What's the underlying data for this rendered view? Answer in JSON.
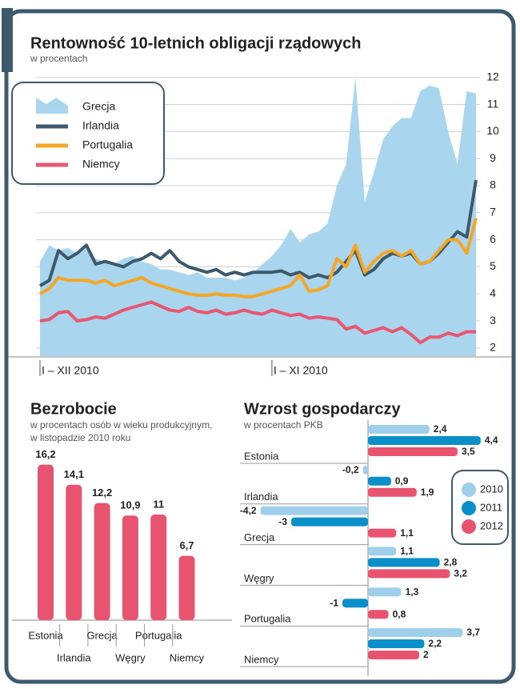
{
  "chart_data": [
    {
      "type": "line",
      "title": "Rentowność 10-letnich obligacji rządowych",
      "subtitle": "w procentach",
      "categories": [
        "I – XII 2010",
        null,
        null,
        null,
        null,
        null,
        null,
        null,
        null,
        null,
        null,
        null,
        null,
        null,
        null,
        null,
        null,
        null,
        null,
        null,
        null,
        null,
        null,
        null,
        null,
        "I – XI 2010",
        null,
        null,
        null,
        null,
        null,
        null,
        null,
        null,
        null,
        null,
        null,
        null,
        null,
        null,
        null,
        null,
        null,
        null,
        null,
        null,
        null,
        null
      ],
      "series": [
        {
          "name": "Grecja",
          "color": "#a9d5ee",
          "style": "area",
          "values": [
            5.2,
            5.8,
            5.6,
            5.7,
            5.5,
            5.7,
            5.3,
            5.2,
            5.1,
            5.3,
            5.4,
            5.2,
            5.1,
            4.9,
            4.9,
            4.8,
            4.7,
            4.8,
            4.6,
            4.6,
            4.6,
            4.5,
            4.6,
            4.8,
            5.1,
            5.4,
            5.8,
            6.4,
            5.9,
            6.2,
            6.3,
            6.6,
            8.0,
            8.8,
            12.0,
            7.4,
            8.5,
            9.7,
            10.2,
            10.5,
            10.5,
            11.5,
            11.7,
            11.6,
            10.0,
            8.8,
            11.5,
            11.4
          ]
        },
        {
          "name": "Irlandia",
          "color": "#3d5a6c",
          "style": "line",
          "values": [
            4.3,
            4.5,
            5.6,
            5.3,
            5.5,
            5.8,
            5.1,
            5.2,
            5.1,
            5.0,
            5.2,
            5.3,
            5.5,
            5.3,
            5.6,
            5.2,
            5.0,
            4.9,
            4.8,
            4.9,
            4.7,
            4.8,
            4.7,
            4.8,
            4.8,
            4.8,
            4.85,
            4.7,
            4.8,
            4.6,
            4.7,
            4.6,
            4.8,
            5.2,
            5.6,
            4.7,
            4.9,
            5.3,
            5.5,
            5.4,
            5.5,
            5.1,
            5.2,
            5.5,
            5.9,
            6.3,
            6.1,
            8.2
          ]
        },
        {
          "name": "Portugalia",
          "color": "#f5a623",
          "style": "line",
          "values": [
            4.0,
            4.2,
            4.6,
            4.5,
            4.5,
            4.5,
            4.4,
            4.5,
            4.3,
            4.4,
            4.5,
            4.6,
            4.4,
            4.3,
            4.2,
            4.1,
            4.0,
            3.95,
            3.95,
            4.0,
            3.95,
            3.95,
            3.9,
            3.9,
            4.0,
            4.1,
            4.2,
            4.3,
            4.7,
            4.1,
            4.15,
            4.3,
            5.3,
            5.0,
            5.8,
            4.8,
            5.2,
            5.5,
            5.6,
            5.4,
            5.6,
            5.1,
            5.2,
            5.6,
            6.0,
            6.0,
            5.5,
            6.8
          ]
        },
        {
          "name": "Niemcy",
          "color": "#e8566f",
          "style": "line",
          "values": [
            3.0,
            3.05,
            3.3,
            3.35,
            3.0,
            3.05,
            3.15,
            3.1,
            3.25,
            3.4,
            3.5,
            3.6,
            3.7,
            3.55,
            3.4,
            3.35,
            3.5,
            3.35,
            3.3,
            3.4,
            3.25,
            3.3,
            3.4,
            3.3,
            3.25,
            3.4,
            3.3,
            3.2,
            3.25,
            3.1,
            3.15,
            3.1,
            3.05,
            2.7,
            2.8,
            2.55,
            2.65,
            2.75,
            2.6,
            2.75,
            2.5,
            2.2,
            2.4,
            2.4,
            2.55,
            2.45,
            2.6,
            2.6
          ]
        }
      ],
      "ylim": [
        1.7,
        12.2
      ],
      "yticks": [
        2,
        3,
        4,
        5,
        6,
        7,
        8,
        9,
        10,
        11,
        12
      ],
      "grid": true,
      "legend": "top-left"
    },
    {
      "type": "bar",
      "title": "Bezrobocie",
      "subtitle": [
        "w procentach osób w wieku produkcyjnym,",
        "w listopadzie 2010 roku"
      ],
      "categories": [
        "Estonia",
        "Irlandia",
        "Grecja",
        "Węgry",
        "Portugalia",
        "Niemcy"
      ],
      "values": [
        16.2,
        14.1,
        12.2,
        10.9,
        11,
        6.7
      ],
      "value_labels": [
        "16,2",
        "14,1",
        "12,2",
        "10,9",
        "11",
        "6,7"
      ],
      "color": "#e8546f"
    },
    {
      "type": "barh",
      "title": "Wzrost gospodarczy",
      "subtitle": "w procentach PKB",
      "categories": [
        "Estonia",
        "Irlandia",
        "Grecja",
        "Węgry",
        "Portugalia",
        "Niemcy"
      ],
      "series": [
        {
          "name": "2010",
          "color": "#9fcfea",
          "values": [
            2.4,
            -0.2,
            -4.2,
            1.1,
            1.3,
            3.7
          ],
          "value_labels": [
            "2,4",
            "-0,2",
            "-4,2",
            "1,1",
            "1,3",
            "3,7"
          ]
        },
        {
          "name": "2011",
          "color": "#0a8fc8",
          "values": [
            4.4,
            0.9,
            -3,
            2.8,
            -1,
            2.2
          ],
          "value_labels": [
            "4,4",
            "0,9",
            "-3",
            "2,8",
            "-1",
            "2,2"
          ]
        },
        {
          "name": "2012",
          "color": "#e8546f",
          "values": [
            3.5,
            1.9,
            1.1,
            3.2,
            0.8,
            2
          ],
          "value_labels": [
            "3,5",
            "1,9",
            "1,1",
            "3,2",
            "0,8",
            "2"
          ]
        }
      ],
      "legend": "right"
    }
  ]
}
